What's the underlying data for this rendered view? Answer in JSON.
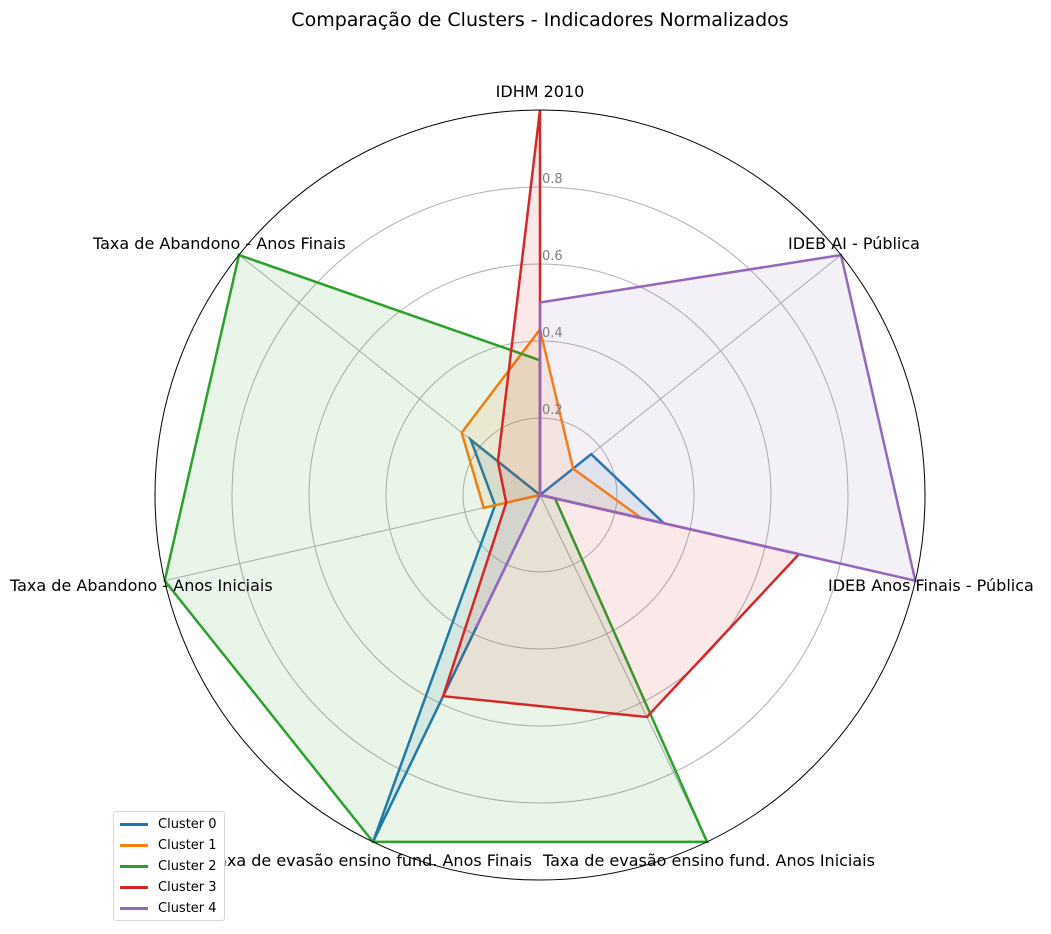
{
  "chart_data": {
    "type": "radar",
    "title": "Comparação de Clusters - Indicadores Normalizados",
    "axes": [
      "IDHM 2010",
      "IDEB AI - Pública",
      "IDEB Anos Finais - Pública",
      "Taxa de evasão ensino fund. Anos Iniciais",
      "Taxa de evasão ensino fund. Anos Finais",
      "Taxa de Abandono - Anos Iniciais",
      "Taxa de Abandono - Anos Finais"
    ],
    "radial_ticks": [
      "0.2",
      "0.4",
      "0.6",
      "0.8"
    ],
    "rlim": [
      0,
      1
    ],
    "grid": true,
    "legend_position": "lower-left",
    "series": [
      {
        "name": "Cluster 0",
        "color": "#1f77b4",
        "values": [
          0.0,
          0.17,
          0.33,
          0.0,
          1.0,
          0.12,
          0.23
        ]
      },
      {
        "name": "Cluster 1",
        "color": "#ff7f0e",
        "values": [
          0.43,
          0.11,
          0.27,
          0.0,
          0.0,
          0.15,
          0.26
        ]
      },
      {
        "name": "Cluster 2",
        "color": "#2ca02c",
        "values": [
          0.35,
          0.0,
          0.04,
          1.0,
          1.0,
          1.0,
          1.0
        ]
      },
      {
        "name": "Cluster 3",
        "color": "#d62728",
        "values": [
          1.0,
          0.0,
          0.69,
          0.64,
          0.58,
          0.09,
          0.14
        ]
      },
      {
        "name": "Cluster 4",
        "color": "#9467bd",
        "values": [
          0.5,
          1.0,
          1.0,
          0.0,
          0.38,
          0.0,
          0.0
        ]
      }
    ]
  }
}
